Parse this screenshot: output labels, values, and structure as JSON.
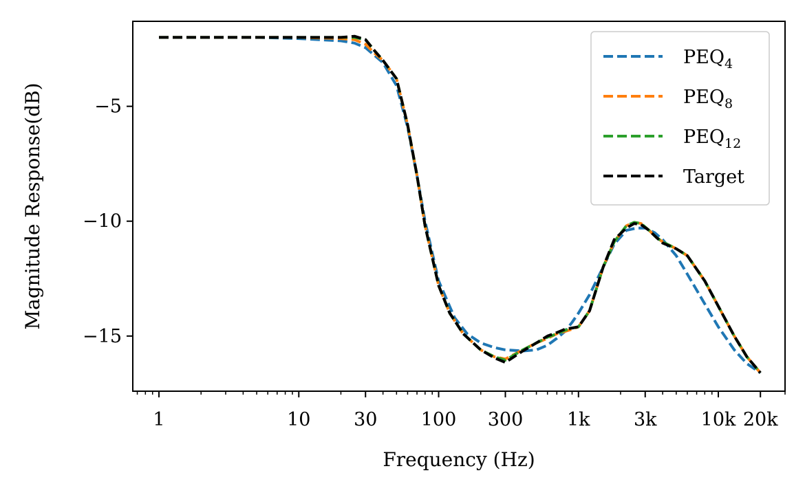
{
  "chart_data": {
    "type": "line",
    "title": "",
    "xlabel": "Frequency (Hz)",
    "ylabel": "Magnitude Response(dB)",
    "xscale": "log",
    "xlim": [
      0.65,
      30000
    ],
    "ylim": [
      -17.4,
      -1.3
    ],
    "xticks": [
      {
        "value": 1,
        "label": "1"
      },
      {
        "value": 10,
        "label": "10"
      },
      {
        "value": 30,
        "label": "30"
      },
      {
        "value": 100,
        "label": "100"
      },
      {
        "value": 300,
        "label": "300"
      },
      {
        "value": 1000,
        "label": "1k"
      },
      {
        "value": 3000,
        "label": "3k"
      },
      {
        "value": 10000,
        "label": "10k"
      },
      {
        "value": 20000,
        "label": "20k"
      }
    ],
    "yticks": [
      {
        "value": -5,
        "label": "−5"
      },
      {
        "value": -10,
        "label": "−10"
      },
      {
        "value": -15,
        "label": "−15"
      }
    ],
    "legend_position": "top-right",
    "series": [
      {
        "name": "PEQ4",
        "base": "PEQ",
        "sub": "4",
        "color": "#1f77b4",
        "x": [
          1,
          5,
          10,
          20,
          25,
          30,
          40,
          50,
          60,
          70,
          80,
          100,
          130,
          160,
          200,
          250,
          300,
          400,
          500,
          600,
          700,
          800,
          900,
          1000,
          1200,
          1500,
          1800,
          2200,
          2600,
          3000,
          3500,
          4000,
          5000,
          6000,
          8000,
          10000,
          13000,
          16000,
          20000
        ],
        "y": [
          -2.0,
          -2.0,
          -2.05,
          -2.15,
          -2.25,
          -2.45,
          -3.1,
          -4.1,
          -5.9,
          -8.0,
          -10.0,
          -12.6,
          -14.2,
          -14.9,
          -15.3,
          -15.5,
          -15.6,
          -15.65,
          -15.6,
          -15.4,
          -15.1,
          -14.8,
          -14.4,
          -14.0,
          -13.2,
          -12.0,
          -11.0,
          -10.4,
          -10.3,
          -10.3,
          -10.5,
          -10.8,
          -11.5,
          -12.3,
          -13.6,
          -14.6,
          -15.6,
          -16.2,
          -16.6
        ]
      },
      {
        "name": "PEQ8",
        "base": "PEQ",
        "sub": "8",
        "color": "#ff7f0e",
        "x": [
          1,
          5,
          10,
          20,
          25,
          30,
          35,
          40,
          50,
          60,
          70,
          80,
          100,
          120,
          150,
          200,
          250,
          300,
          400,
          500,
          600,
          700,
          800,
          900,
          1000,
          1200,
          1500,
          1800,
          2200,
          2500,
          2800,
          3200,
          3600,
          4000,
          5000,
          6000,
          8000,
          10000,
          13000,
          16000,
          20000
        ],
        "y": [
          -2.0,
          -2.0,
          -2.0,
          -2.05,
          -2.1,
          -2.3,
          -2.7,
          -3.0,
          -3.8,
          -5.8,
          -8.0,
          -10.2,
          -12.8,
          -14.0,
          -14.9,
          -15.6,
          -15.9,
          -16.0,
          -15.6,
          -15.3,
          -15.1,
          -14.9,
          -14.8,
          -14.7,
          -14.6,
          -13.9,
          -12.0,
          -10.9,
          -10.2,
          -10.05,
          -10.1,
          -10.4,
          -10.7,
          -10.9,
          -11.2,
          -11.5,
          -12.6,
          -13.7,
          -15.0,
          -15.9,
          -16.6
        ]
      },
      {
        "name": "PEQ12",
        "base": "PEQ",
        "sub": "12",
        "color": "#2ca02c",
        "x": [
          1,
          5,
          10,
          20,
          25,
          30,
          35,
          40,
          50,
          60,
          70,
          80,
          100,
          120,
          150,
          200,
          250,
          300,
          400,
          500,
          600,
          700,
          800,
          900,
          1000,
          1200,
          1500,
          1800,
          2200,
          2500,
          2800,
          3200,
          3600,
          4000,
          5000,
          6000,
          8000,
          10000,
          13000,
          16000,
          20000
        ],
        "y": [
          -2.0,
          -2.0,
          -2.0,
          -2.0,
          -2.0,
          -2.1,
          -2.6,
          -3.0,
          -3.8,
          -5.8,
          -8.0,
          -10.2,
          -12.8,
          -14.0,
          -14.9,
          -15.6,
          -15.9,
          -16.05,
          -15.6,
          -15.3,
          -15.05,
          -14.9,
          -14.75,
          -14.65,
          -14.6,
          -13.9,
          -12.0,
          -10.9,
          -10.2,
          -10.05,
          -10.1,
          -10.4,
          -10.7,
          -10.9,
          -11.2,
          -11.5,
          -12.6,
          -13.7,
          -15.0,
          -15.9,
          -16.6
        ]
      },
      {
        "name": "Target",
        "base": "Target",
        "sub": "",
        "color": "#000000",
        "x": [
          1,
          5,
          10,
          20,
          25,
          30,
          35,
          40,
          50,
          60,
          70,
          80,
          100,
          120,
          150,
          200,
          250,
          300,
          400,
          500,
          600,
          700,
          800,
          900,
          1000,
          1200,
          1500,
          1800,
          2200,
          2500,
          2800,
          3200,
          3600,
          4000,
          5000,
          6000,
          8000,
          10000,
          13000,
          16000,
          20000
        ],
        "y": [
          -2.0,
          -2.0,
          -2.0,
          -2.0,
          -1.95,
          -2.1,
          -2.6,
          -3.0,
          -3.8,
          -5.8,
          -8.0,
          -10.2,
          -12.8,
          -14.0,
          -14.9,
          -15.6,
          -15.95,
          -16.15,
          -15.65,
          -15.3,
          -15.0,
          -14.85,
          -14.7,
          -14.65,
          -14.6,
          -13.9,
          -12.0,
          -10.8,
          -10.3,
          -10.1,
          -10.15,
          -10.4,
          -10.7,
          -10.95,
          -11.2,
          -11.5,
          -12.6,
          -13.7,
          -15.0,
          -15.9,
          -16.6
        ]
      }
    ]
  }
}
